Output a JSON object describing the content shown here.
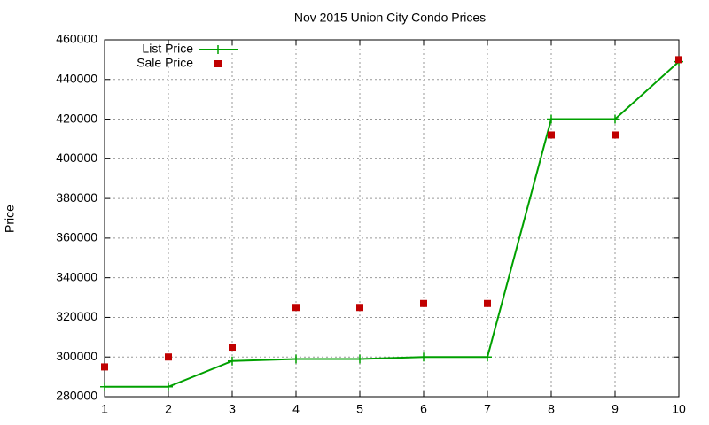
{
  "chart_data": {
    "type": "line",
    "title": "Nov 2015 Union City Condo Prices",
    "ylabel": "Price",
    "x": [
      1,
      2,
      3,
      4,
      5,
      6,
      7,
      8,
      9,
      10
    ],
    "series": [
      {
        "name": "List Price",
        "color": "#00a000",
        "style": "linespoints",
        "values": [
          285000,
          285000,
          298000,
          299000,
          299000,
          300000,
          300000,
          420000,
          420000,
          449000
        ]
      },
      {
        "name": "Sale Price",
        "color": "#c00000",
        "style": "points",
        "values": [
          295000,
          300000,
          305000,
          325000,
          325000,
          327000,
          327000,
          412000,
          412000,
          450000
        ]
      }
    ],
    "xlim": [
      1,
      10
    ],
    "xticks": [
      1,
      2,
      3,
      4,
      5,
      6,
      7,
      8,
      9,
      10
    ],
    "ylim": [
      280000,
      460000
    ],
    "yticks": [
      280000,
      300000,
      320000,
      340000,
      360000,
      380000,
      400000,
      420000,
      440000,
      460000
    ],
    "grid": true,
    "legend": "top-left"
  }
}
